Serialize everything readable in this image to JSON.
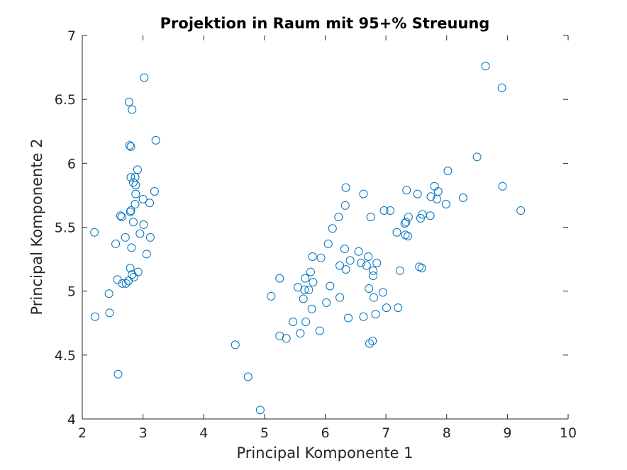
{
  "chart_data": {
    "type": "scatter",
    "title": "Projektion in Raum mit 95+% Streuung",
    "xlabel": "Principal Komponente 1",
    "ylabel": "Principal Komponente 2",
    "xlim": [
      2,
      10
    ],
    "ylim": [
      4,
      7
    ],
    "xticks": [
      "2",
      "3",
      "4",
      "5",
      "6",
      "7",
      "8",
      "9",
      "10"
    ],
    "yticks": [
      "4",
      "4.5",
      "5",
      "5.5",
      "6",
      "6.5",
      "7"
    ],
    "grid": false,
    "legend": "none",
    "marker": "circle-open",
    "marker_color": "#0072bd",
    "axis_color": "#262626",
    "points": [
      [
        2.2,
        5.46
      ],
      [
        2.21,
        4.8
      ],
      [
        2.44,
        4.98
      ],
      [
        2.45,
        4.83
      ],
      [
        2.55,
        5.37
      ],
      [
        2.58,
        5.09
      ],
      [
        2.59,
        4.35
      ],
      [
        2.63,
        5.59
      ],
      [
        2.65,
        5.58
      ],
      [
        2.66,
        5.06
      ],
      [
        2.71,
        5.42
      ],
      [
        2.72,
        5.06
      ],
      [
        2.76,
        5.08
      ],
      [
        2.77,
        6.48
      ],
      [
        2.78,
        6.14
      ],
      [
        2.79,
        5.62
      ],
      [
        2.79,
        5.18
      ],
      [
        2.8,
        6.13
      ],
      [
        2.8,
        5.89
      ],
      [
        2.8,
        5.63
      ],
      [
        2.81,
        5.34
      ],
      [
        2.82,
        6.42
      ],
      [
        2.82,
        5.13
      ],
      [
        2.84,
        5.85
      ],
      [
        2.84,
        5.54
      ],
      [
        2.85,
        5.11
      ],
      [
        2.87,
        5.89
      ],
      [
        2.88,
        5.83
      ],
      [
        2.88,
        5.76
      ],
      [
        2.87,
        5.68
      ],
      [
        2.91,
        5.95
      ],
      [
        2.92,
        5.15
      ],
      [
        2.95,
        5.45
      ],
      [
        3.0,
        5.72
      ],
      [
        3.01,
        5.52
      ],
      [
        3.02,
        6.67
      ],
      [
        3.06,
        5.29
      ],
      [
        3.11,
        5.69
      ],
      [
        3.12,
        5.42
      ],
      [
        3.19,
        5.78
      ],
      [
        3.21,
        6.18
      ],
      [
        4.52,
        4.58
      ],
      [
        4.73,
        4.33
      ],
      [
        4.93,
        4.07
      ],
      [
        5.11,
        4.96
      ],
      [
        5.25,
        5.1
      ],
      [
        5.25,
        4.65
      ],
      [
        5.36,
        4.63
      ],
      [
        5.47,
        4.76
      ],
      [
        5.55,
        5.03
      ],
      [
        5.59,
        4.67
      ],
      [
        5.64,
        4.94
      ],
      [
        5.66,
        5.01
      ],
      [
        5.67,
        5.1
      ],
      [
        5.68,
        4.76
      ],
      [
        5.73,
        5.01
      ],
      [
        5.76,
        5.15
      ],
      [
        5.78,
        4.86
      ],
      [
        5.79,
        5.27
      ],
      [
        5.8,
        5.07
      ],
      [
        5.91,
        4.69
      ],
      [
        5.93,
        5.26
      ],
      [
        6.02,
        4.91
      ],
      [
        6.05,
        5.37
      ],
      [
        6.08,
        5.04
      ],
      [
        6.12,
        5.49
      ],
      [
        6.22,
        5.58
      ],
      [
        6.24,
        5.2
      ],
      [
        6.24,
        4.95
      ],
      [
        6.32,
        5.33
      ],
      [
        6.33,
        5.67
      ],
      [
        6.34,
        5.81
      ],
      [
        6.34,
        5.17
      ],
      [
        6.38,
        4.79
      ],
      [
        6.41,
        5.24
      ],
      [
        6.55,
        5.31
      ],
      [
        6.59,
        5.22
      ],
      [
        6.63,
        5.76
      ],
      [
        6.63,
        4.8
      ],
      [
        6.68,
        5.2
      ],
      [
        6.71,
        5.27
      ],
      [
        6.72,
        5.02
      ],
      [
        6.73,
        4.59
      ],
      [
        6.75,
        5.58
      ],
      [
        6.78,
        4.61
      ],
      [
        6.79,
        5.16
      ],
      [
        6.79,
        5.12
      ],
      [
        6.8,
        4.95
      ],
      [
        6.83,
        4.82
      ],
      [
        6.85,
        5.22
      ],
      [
        6.95,
        4.99
      ],
      [
        6.97,
        5.63
      ],
      [
        7.01,
        4.87
      ],
      [
        7.07,
        5.63
      ],
      [
        7.18,
        5.46
      ],
      [
        7.2,
        4.87
      ],
      [
        7.23,
        5.16
      ],
      [
        7.31,
        5.53
      ],
      [
        7.32,
        5.44
      ],
      [
        7.33,
        5.54
      ],
      [
        7.34,
        5.79
      ],
      [
        7.36,
        5.43
      ],
      [
        7.37,
        5.58
      ],
      [
        7.52,
        5.76
      ],
      [
        7.55,
        5.19
      ],
      [
        7.57,
        5.57
      ],
      [
        7.59,
        5.18
      ],
      [
        7.6,
        5.6
      ],
      [
        7.73,
        5.59
      ],
      [
        7.74,
        5.74
      ],
      [
        7.8,
        5.82
      ],
      [
        7.84,
        5.72
      ],
      [
        7.86,
        5.78
      ],
      [
        7.99,
        5.68
      ],
      [
        8.02,
        5.94
      ],
      [
        8.27,
        5.73
      ],
      [
        8.5,
        6.05
      ],
      [
        8.64,
        6.76
      ],
      [
        8.91,
        6.59
      ],
      [
        8.92,
        5.82
      ],
      [
        9.22,
        5.63
      ]
    ]
  }
}
